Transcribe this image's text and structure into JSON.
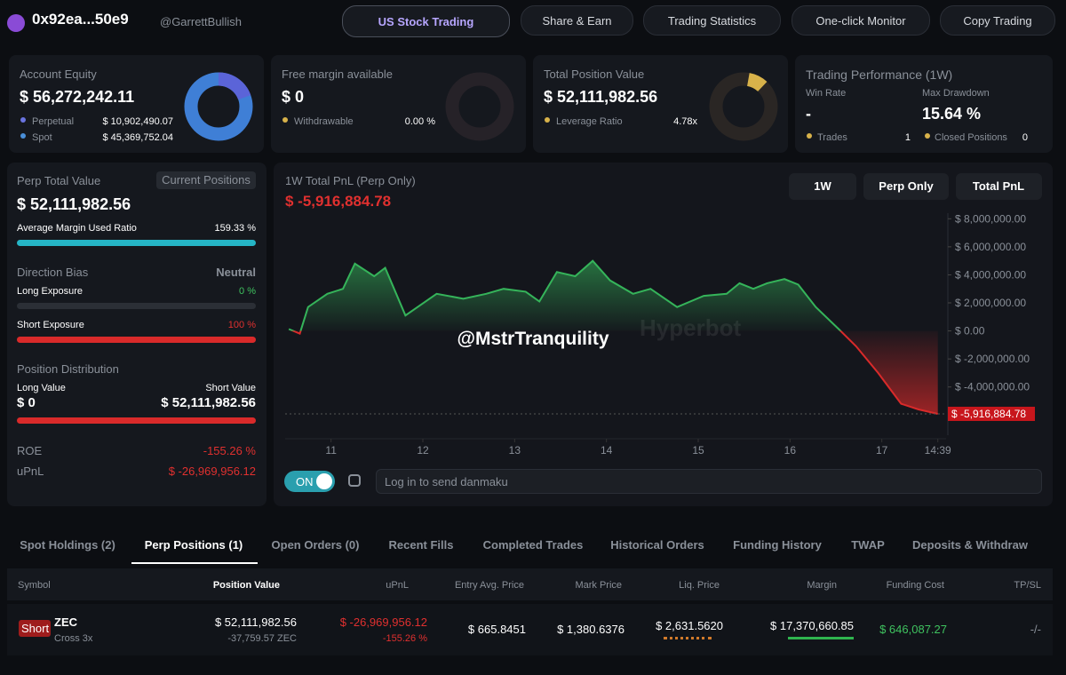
{
  "header": {
    "address": "0x92ea...50e9",
    "handle": "@GarrettBullish",
    "nav": [
      "US Stock Trading",
      "Share & Earn",
      "Trading Statistics",
      "One-click Monitor",
      "Copy Trading"
    ]
  },
  "cards": {
    "equity": {
      "label": "Account Equity",
      "value": "$ 56,272,242.11",
      "perpetual_label": "Perpetual",
      "perpetual": "$ 10,902,490.07",
      "spot_label": "Spot",
      "spot": "$ 45,369,752.04"
    },
    "margin": {
      "label": "Free margin available",
      "value": "$ 0",
      "withdrawable_label": "Withdrawable",
      "withdrawable": "0.00 %"
    },
    "position": {
      "label": "Total Position Value",
      "value": "$ 52,111,982.56",
      "leverage_label": "Leverage Ratio",
      "leverage": "4.78x"
    },
    "performance": {
      "title": "Trading Performance (1W)",
      "win_rate_label": "Win Rate",
      "win_rate": "-",
      "drawdown_label": "Max Drawdown",
      "drawdown": "15.64 %",
      "trades_label": "Trades",
      "trades": "1",
      "closed_label": "Closed Positions",
      "closed": "0"
    }
  },
  "perp": {
    "title": "Perp Total Value",
    "tab": "Current Positions",
    "value": "$ 52,111,982.56",
    "margin_label": "Average Margin Used Ratio",
    "margin": "159.33 %",
    "bias_label": "Direction Bias",
    "bias": "Neutral",
    "long_label": "Long Exposure",
    "long": "0 %",
    "short_label": "Short Exposure",
    "short": "100 %",
    "dist_title": "Position Distribution",
    "long_value_label": "Long Value",
    "long_value": "$ 0",
    "short_value_label": "Short Value",
    "short_value": "$ 52,111,982.56",
    "roe_label": "ROE",
    "roe": "-155.26 %",
    "upnl_label": "uPnL",
    "upnl": "$ -26,969,956.12"
  },
  "chart_data": {
    "type": "area",
    "title": "1W Total PnL (Perp Only)",
    "current_label": "$ -5,916,884.78",
    "controls": [
      "1W",
      "Perp Only",
      "Total PnL"
    ],
    "watermark": "@MstrTranquility",
    "brand": "Hyperbot",
    "x": [
      10.54,
      10.66,
      10.75,
      10.96,
      11.13,
      11.26,
      11.47,
      11.59,
      11.81,
      12.15,
      12.44,
      12.69,
      12.88,
      13.12,
      13.27,
      13.46,
      13.66,
      13.85,
      14.04,
      14.29,
      14.48,
      14.77,
      15.06,
      15.31,
      15.45,
      15.6,
      15.75,
      15.94,
      16.09,
      16.28,
      16.53,
      16.72,
      16.96,
      17.21,
      17.4,
      17.61
    ],
    "series": [
      {
        "name": "Total PnL",
        "values": [
          130000,
          -190000,
          1700000,
          2650000,
          3000000,
          4800000,
          3900000,
          4500000,
          1100000,
          2650000,
          2300000,
          2650000,
          3000000,
          2800000,
          2100000,
          4200000,
          3900000,
          5000000,
          3600000,
          2650000,
          3000000,
          1700000,
          2500000,
          2650000,
          3400000,
          3000000,
          3400000,
          3700000,
          3300000,
          1700000,
          130000,
          -1100000,
          -3000000,
          -5200000,
          -5600000,
          -5916884.78
        ],
        "color_up": "#35b45a",
        "color_down": "#d92a2a"
      }
    ],
    "xlim": [
      10.5,
      17.7
    ],
    "xticks": [
      11,
      12,
      13,
      14,
      15,
      16,
      17,
      {
        "value": 17.61,
        "label": "14:39"
      }
    ],
    "ylim": [
      -7440000,
      8400000
    ],
    "yticks": [
      {
        "value": 8000000,
        "label": "$ 8,000,000.00"
      },
      {
        "value": 6000000,
        "label": "$ 6,000,000.00"
      },
      {
        "value": 4000000,
        "label": "$ 4,000,000.00"
      },
      {
        "value": 2000000,
        "label": "$ 2,000,000.00"
      },
      {
        "value": 0,
        "label": "$ 0.00"
      },
      {
        "value": -2000000,
        "label": "$ -2,000,000.00"
      },
      {
        "value": -4000000,
        "label": "$ -4,000,000.00"
      }
    ]
  },
  "danmaku": {
    "toggle": "ON",
    "placeholder": "Log in to send danmaku"
  },
  "tabs": {
    "items": [
      "Spot Holdings (2)",
      "Perp Positions (1)",
      "Open Orders (0)",
      "Recent Fills",
      "Completed Trades",
      "Historical Orders",
      "Funding History",
      "TWAP",
      "Deposits & Withdraw"
    ],
    "active": 1
  },
  "table": {
    "columns": [
      "Symbol",
      "Position Value",
      "uPnL",
      "Entry Avg. Price",
      "Mark Price",
      "Liq. Price",
      "Margin",
      "Funding Cost",
      "TP/SL"
    ],
    "rows": [
      {
        "side": "Short",
        "symbol": "ZEC",
        "mode": "Cross 3x",
        "position_value": "$ 52,111,982.56",
        "size": "-37,759.57 ZEC",
        "upnl": "$ -26,969,956.12",
        "upnl_pct": "-155.26 %",
        "entry": "$ 665.8451",
        "mark": "$ 1,380.6376",
        "liq": "$ 2,631.5620",
        "margin": "$ 17,370,660.85",
        "funding": "$ 646,087.27",
        "tpsl": "-/-"
      }
    ]
  }
}
